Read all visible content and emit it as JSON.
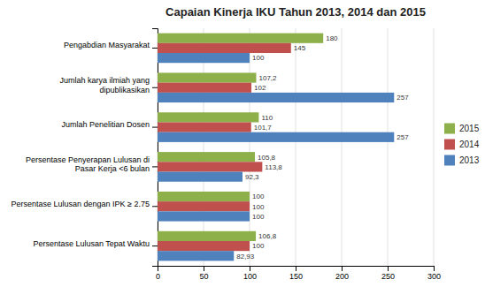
{
  "chart_data": {
    "type": "bar",
    "orientation": "horizontal",
    "title": "Capaian Kinerja IKU Tahun 2013, 2014 dan 2015",
    "categories": [
      "Pengabdian Masyarakat",
      "Jumlah karya ilmiah yang\ndipublikasikan",
      "Jumlah Penelitian Dosen",
      "Persentase Penyerapan Lulusan di\nPasar Kerja <6 bulan",
      "Persentase Lulusan dengan IPK ≥ 2.75",
      "Persentase Lulusan Tepat Waktu"
    ],
    "series": [
      {
        "name": "2015",
        "color": "#8DB04A",
        "values": [
          180,
          107.2,
          110,
          105.8,
          100,
          106.8
        ],
        "value_labels": [
          "180",
          "107,2",
          "110",
          "105,8",
          "100",
          "106,8"
        ]
      },
      {
        "name": "2014",
        "color": "#C0504D",
        "values": [
          145,
          102,
          101.7,
          113.8,
          100,
          100
        ],
        "value_labels": [
          "145",
          "102",
          "101,7",
          "113,8",
          "100",
          "100"
        ]
      },
      {
        "name": "2013",
        "color": "#4F81BD",
        "values": [
          100,
          257,
          257,
          92.3,
          100,
          82.93
        ],
        "value_labels": [
          "100",
          "257",
          "257",
          "92,3",
          "100",
          "82,93"
        ]
      }
    ],
    "xlim": [
      0,
      300
    ],
    "xticks": [
      0,
      50,
      100,
      150,
      200,
      250,
      300
    ],
    "grid": true,
    "legend": "right",
    "data_labels": true
  }
}
